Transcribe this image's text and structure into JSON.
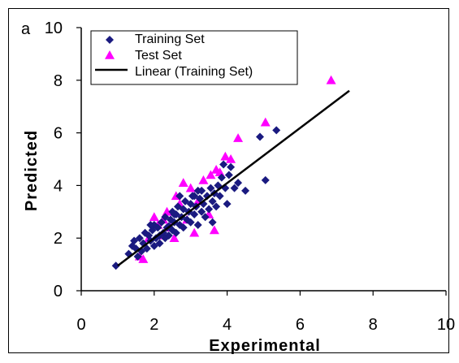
{
  "chart_data": {
    "type": "scatter",
    "panel_label": "a",
    "xlabel": "Experimental",
    "ylabel": "Predicted",
    "xlim": [
      0,
      10
    ],
    "ylim": [
      0,
      10
    ],
    "xticks": [
      "0",
      "2",
      "4",
      "6",
      "8",
      "10"
    ],
    "yticks": [
      "0",
      "2",
      "4",
      "6",
      "8",
      "10"
    ],
    "grid": false,
    "legend_position": "top-left",
    "series": [
      {
        "name": "Training Set",
        "marker": "diamond",
        "color": "#1a1a80",
        "points": [
          [
            0.95,
            0.95
          ],
          [
            1.3,
            1.4
          ],
          [
            1.4,
            1.7
          ],
          [
            1.45,
            1.9
          ],
          [
            1.5,
            1.6
          ],
          [
            1.55,
            1.3
          ],
          [
            1.6,
            2.0
          ],
          [
            1.65,
            1.5
          ],
          [
            1.7,
            1.8
          ],
          [
            1.75,
            2.2
          ],
          [
            1.8,
            1.6
          ],
          [
            1.85,
            2.1
          ],
          [
            1.9,
            1.9
          ],
          [
            1.95,
            2.3
          ],
          [
            2.0,
            1.7
          ],
          [
            2.0,
            2.5
          ],
          [
            2.05,
            2.0
          ],
          [
            2.1,
            2.4
          ],
          [
            2.15,
            1.8
          ],
          [
            2.2,
            2.6
          ],
          [
            2.25,
            2.2
          ],
          [
            2.3,
            2.0
          ],
          [
            2.3,
            2.8
          ],
          [
            2.35,
            2.4
          ],
          [
            2.4,
            2.1
          ],
          [
            2.45,
            2.7
          ],
          [
            2.5,
            2.3
          ],
          [
            2.5,
            3.0
          ],
          [
            2.55,
            2.6
          ],
          [
            2.6,
            2.2
          ],
          [
            2.6,
            2.9
          ],
          [
            2.65,
            3.2
          ],
          [
            2.7,
            2.5
          ],
          [
            2.75,
            2.8
          ],
          [
            2.8,
            3.1
          ],
          [
            2.8,
            2.4
          ],
          [
            2.85,
            3.4
          ],
          [
            2.9,
            2.7
          ],
          [
            2.95,
            3.0
          ],
          [
            3.0,
            2.6
          ],
          [
            3.0,
            3.3
          ],
          [
            3.05,
            3.6
          ],
          [
            3.1,
            2.9
          ],
          [
            3.15,
            3.2
          ],
          [
            3.2,
            2.5
          ],
          [
            3.25,
            3.5
          ],
          [
            3.3,
            3.0
          ],
          [
            3.3,
            3.8
          ],
          [
            3.35,
            3.3
          ],
          [
            3.4,
            2.8
          ],
          [
            3.45,
            3.6
          ],
          [
            3.5,
            3.1
          ],
          [
            3.55,
            3.9
          ],
          [
            3.6,
            3.4
          ],
          [
            3.6,
            2.6
          ],
          [
            3.65,
            3.7
          ],
          [
            3.7,
            3.2
          ],
          [
            3.75,
            4.0
          ],
          [
            3.8,
            3.6
          ],
          [
            3.85,
            4.3
          ],
          [
            3.9,
            4.8
          ],
          [
            3.95,
            3.9
          ],
          [
            4.0,
            3.3
          ],
          [
            4.05,
            4.4
          ],
          [
            4.1,
            4.7
          ],
          [
            4.2,
            3.9
          ],
          [
            4.3,
            4.1
          ],
          [
            4.5,
            3.8
          ],
          [
            4.9,
            5.85
          ],
          [
            5.05,
            4.2
          ],
          [
            5.35,
            6.1
          ],
          [
            2.15,
            2.1
          ],
          [
            2.7,
            3.6
          ],
          [
            3.2,
            3.8
          ],
          [
            2.4,
            2.45
          ],
          [
            1.9,
            2.5
          ],
          [
            3.1,
            3.6
          ],
          [
            2.55,
            2.9
          ]
        ]
      },
      {
        "name": "Test Set",
        "marker": "triangle",
        "color": "#ff00ff",
        "points": [
          [
            1.6,
            1.3
          ],
          [
            1.7,
            1.2
          ],
          [
            1.85,
            2.0
          ],
          [
            2.0,
            2.8
          ],
          [
            2.1,
            2.5
          ],
          [
            2.2,
            2.1
          ],
          [
            2.35,
            3.0
          ],
          [
            2.45,
            2.4
          ],
          [
            2.55,
            2.0
          ],
          [
            2.6,
            3.6
          ],
          [
            2.7,
            3.3
          ],
          [
            2.8,
            4.1
          ],
          [
            2.9,
            2.7
          ],
          [
            3.0,
            3.9
          ],
          [
            3.1,
            2.2
          ],
          [
            3.2,
            3.4
          ],
          [
            3.35,
            4.2
          ],
          [
            3.5,
            2.9
          ],
          [
            3.55,
            4.4
          ],
          [
            3.7,
            4.6
          ],
          [
            3.8,
            4.5
          ],
          [
            3.95,
            5.1
          ],
          [
            4.1,
            5.0
          ],
          [
            4.3,
            5.8
          ],
          [
            5.05,
            6.4
          ],
          [
            6.85,
            8.0
          ],
          [
            2.25,
            2.7
          ],
          [
            3.65,
            2.3
          ]
        ]
      },
      {
        "name": "Linear (Training Set)",
        "type": "line",
        "color": "#000000",
        "x": [
          1.0,
          7.35
        ],
        "y": [
          0.95,
          7.6
        ]
      }
    ]
  }
}
